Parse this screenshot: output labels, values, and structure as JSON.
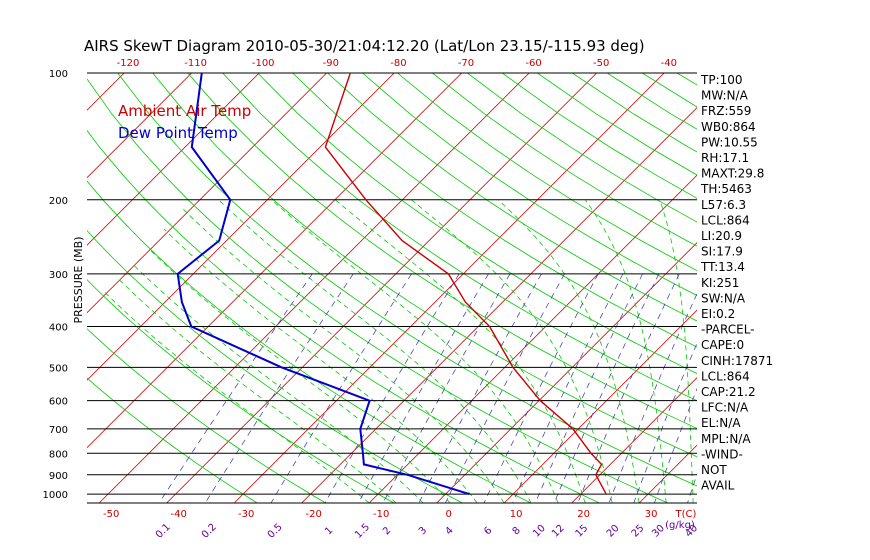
{
  "chart_data": {
    "type": "line",
    "title": "AIRS SkewT Diagram 2010-05-30/21:04:12.20 (Lat/Lon 23.15/-115.93 deg)",
    "ylabel": "PRESSURE (MB)",
    "pressure_ticks": [
      100,
      200,
      300,
      400,
      500,
      600,
      700,
      800,
      900,
      1000
    ],
    "bottom_temp_ticks": [
      -50,
      -40,
      -30,
      -20,
      -10,
      0,
      10,
      20,
      30
    ],
    "bottom_unit_label": "T(C)",
    "mixing_ratio_ticks": [
      "0.1",
      "0.2",
      "0.5",
      "1",
      "1.5",
      "2",
      "3",
      "4",
      "6",
      "8",
      "10",
      "12",
      "15",
      "20",
      "25",
      "30",
      "40"
    ],
    "mixing_unit_label": "(g/kg)",
    "top_temp_ticks": [
      -120,
      -110,
      -100,
      -90,
      -80,
      -70,
      -60,
      -50,
      -40
    ],
    "series": [
      {
        "name": "Ambient Air Temp",
        "color": "#cc0000",
        "points": [
          {
            "p": 100,
            "t": -76.5
          },
          {
            "p": 150,
            "t": -69.2
          },
          {
            "p": 200,
            "t": -55.4
          },
          {
            "p": 250,
            "t": -44.0
          },
          {
            "p": 300,
            "t": -32.2
          },
          {
            "p": 350,
            "t": -25.5
          },
          {
            "p": 400,
            "t": -18.3
          },
          {
            "p": 500,
            "t": -8.8
          },
          {
            "p": 600,
            "t": 0.2
          },
          {
            "p": 700,
            "t": 9.2
          },
          {
            "p": 800,
            "t": 15.5
          },
          {
            "p": 850,
            "t": 18.7
          },
          {
            "p": 900,
            "t": 19.4
          },
          {
            "p": 1000,
            "t": 23.8
          }
        ]
      },
      {
        "name": "Dew Point Temp",
        "color": "#0000cc",
        "points": [
          {
            "p": 100,
            "t": -98.5
          },
          {
            "p": 150,
            "t": -89.0
          },
          {
            "p": 200,
            "t": -75.5
          },
          {
            "p": 250,
            "t": -71.1
          },
          {
            "p": 300,
            "t": -72.3
          },
          {
            "p": 350,
            "t": -67.5
          },
          {
            "p": 400,
            "t": -62.5
          },
          {
            "p": 500,
            "t": -43.1
          },
          {
            "p": 600,
            "t": -25.1
          },
          {
            "p": 700,
            "t": -22.3
          },
          {
            "p": 800,
            "t": -18.3
          },
          {
            "p": 850,
            "t": -16.5
          },
          {
            "p": 900,
            "t": -8.5
          },
          {
            "p": 1000,
            "t": 3.5
          }
        ]
      }
    ],
    "stats": [
      "TP:100",
      "MW:N/A",
      "FRZ:559",
      "WB0:864",
      "PW:10.55",
      "RH:17.1",
      "MAXT:29.8",
      "TH:5463",
      "L57:6.3",
      "LCL:864",
      "LI:20.9",
      "SI:17.9",
      "TT:13.4",
      "KI:251",
      "SW:N/A",
      "EI:0.2",
      "-PARCEL-",
      "CAPE:0",
      "CINH:17871",
      "LCL:864",
      "CAP:21.2",
      "LFC:N/A",
      "EL:N/A",
      "MPL:N/A",
      "-WIND-",
      "NOT",
      "AVAIL"
    ],
    "colors": {
      "isotherm": "#cc0000",
      "dry_adiabat": "#00cc00",
      "moist_adiabat": "#00cc00",
      "mixing_ratio": "#3333aa",
      "isobar": "#000000",
      "tick_text": "#cc0000",
      "mixing_text": "#660099"
    }
  }
}
